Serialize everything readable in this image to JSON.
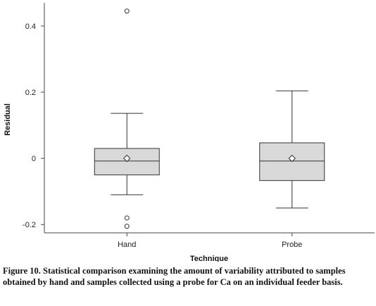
{
  "chart_data": {
    "type": "box",
    "xlabel": "Technique",
    "ylabel": "Residual",
    "ylim": [
      -0.225,
      0.47
    ],
    "yticks": [
      -0.2,
      0,
      0.2,
      0.4
    ],
    "ytick_labels": [
      "-0.2",
      "0",
      "0.2",
      "0.4"
    ],
    "categories": [
      "Hand",
      "Probe"
    ],
    "boxes": [
      {
        "category": "Hand",
        "whisker_low": -0.11,
        "q1": -0.05,
        "median": -0.008,
        "q3": 0.03,
        "whisker_high": 0.136,
        "mean": 0.0,
        "outliers": [
          0.445,
          -0.18,
          -0.205
        ]
      },
      {
        "category": "Probe",
        "whisker_low": -0.15,
        "q1": -0.067,
        "median": -0.008,
        "q3": 0.047,
        "whisker_high": 0.204,
        "mean": 0.0,
        "outliers": []
      }
    ],
    "grid": false,
    "colors": {
      "box_fill": "#d9d9d9",
      "box_stroke": "#333333",
      "axis": "#444444"
    }
  },
  "caption": "Figure 10. Statistical comparison examining the amount of variability attributed to samples obtained by hand and samples collected using a probe for Ca on an individual feeder basis."
}
